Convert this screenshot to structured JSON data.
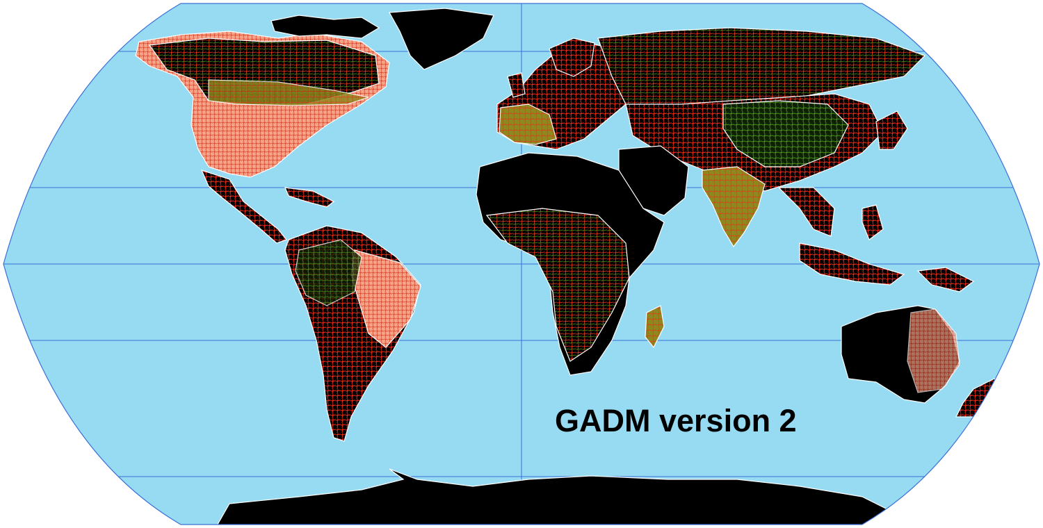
{
  "map": {
    "title": "GADM version 2",
    "projection": "robinson",
    "colors": {
      "ocean": "#97dbf2",
      "outline": "#3a6fd8",
      "graticule": "#3a6fd8",
      "land_base": "#000000",
      "admin_red": "#ff2d1a",
      "admin_salmon": "#f4a58a",
      "admin_green": "#3a7d10",
      "admin_olive": "#9c8f24",
      "admin_white": "#ffffff"
    },
    "layers": [
      "ocean",
      "graticule",
      "country-boundaries",
      "administrative-subdivisions"
    ]
  }
}
